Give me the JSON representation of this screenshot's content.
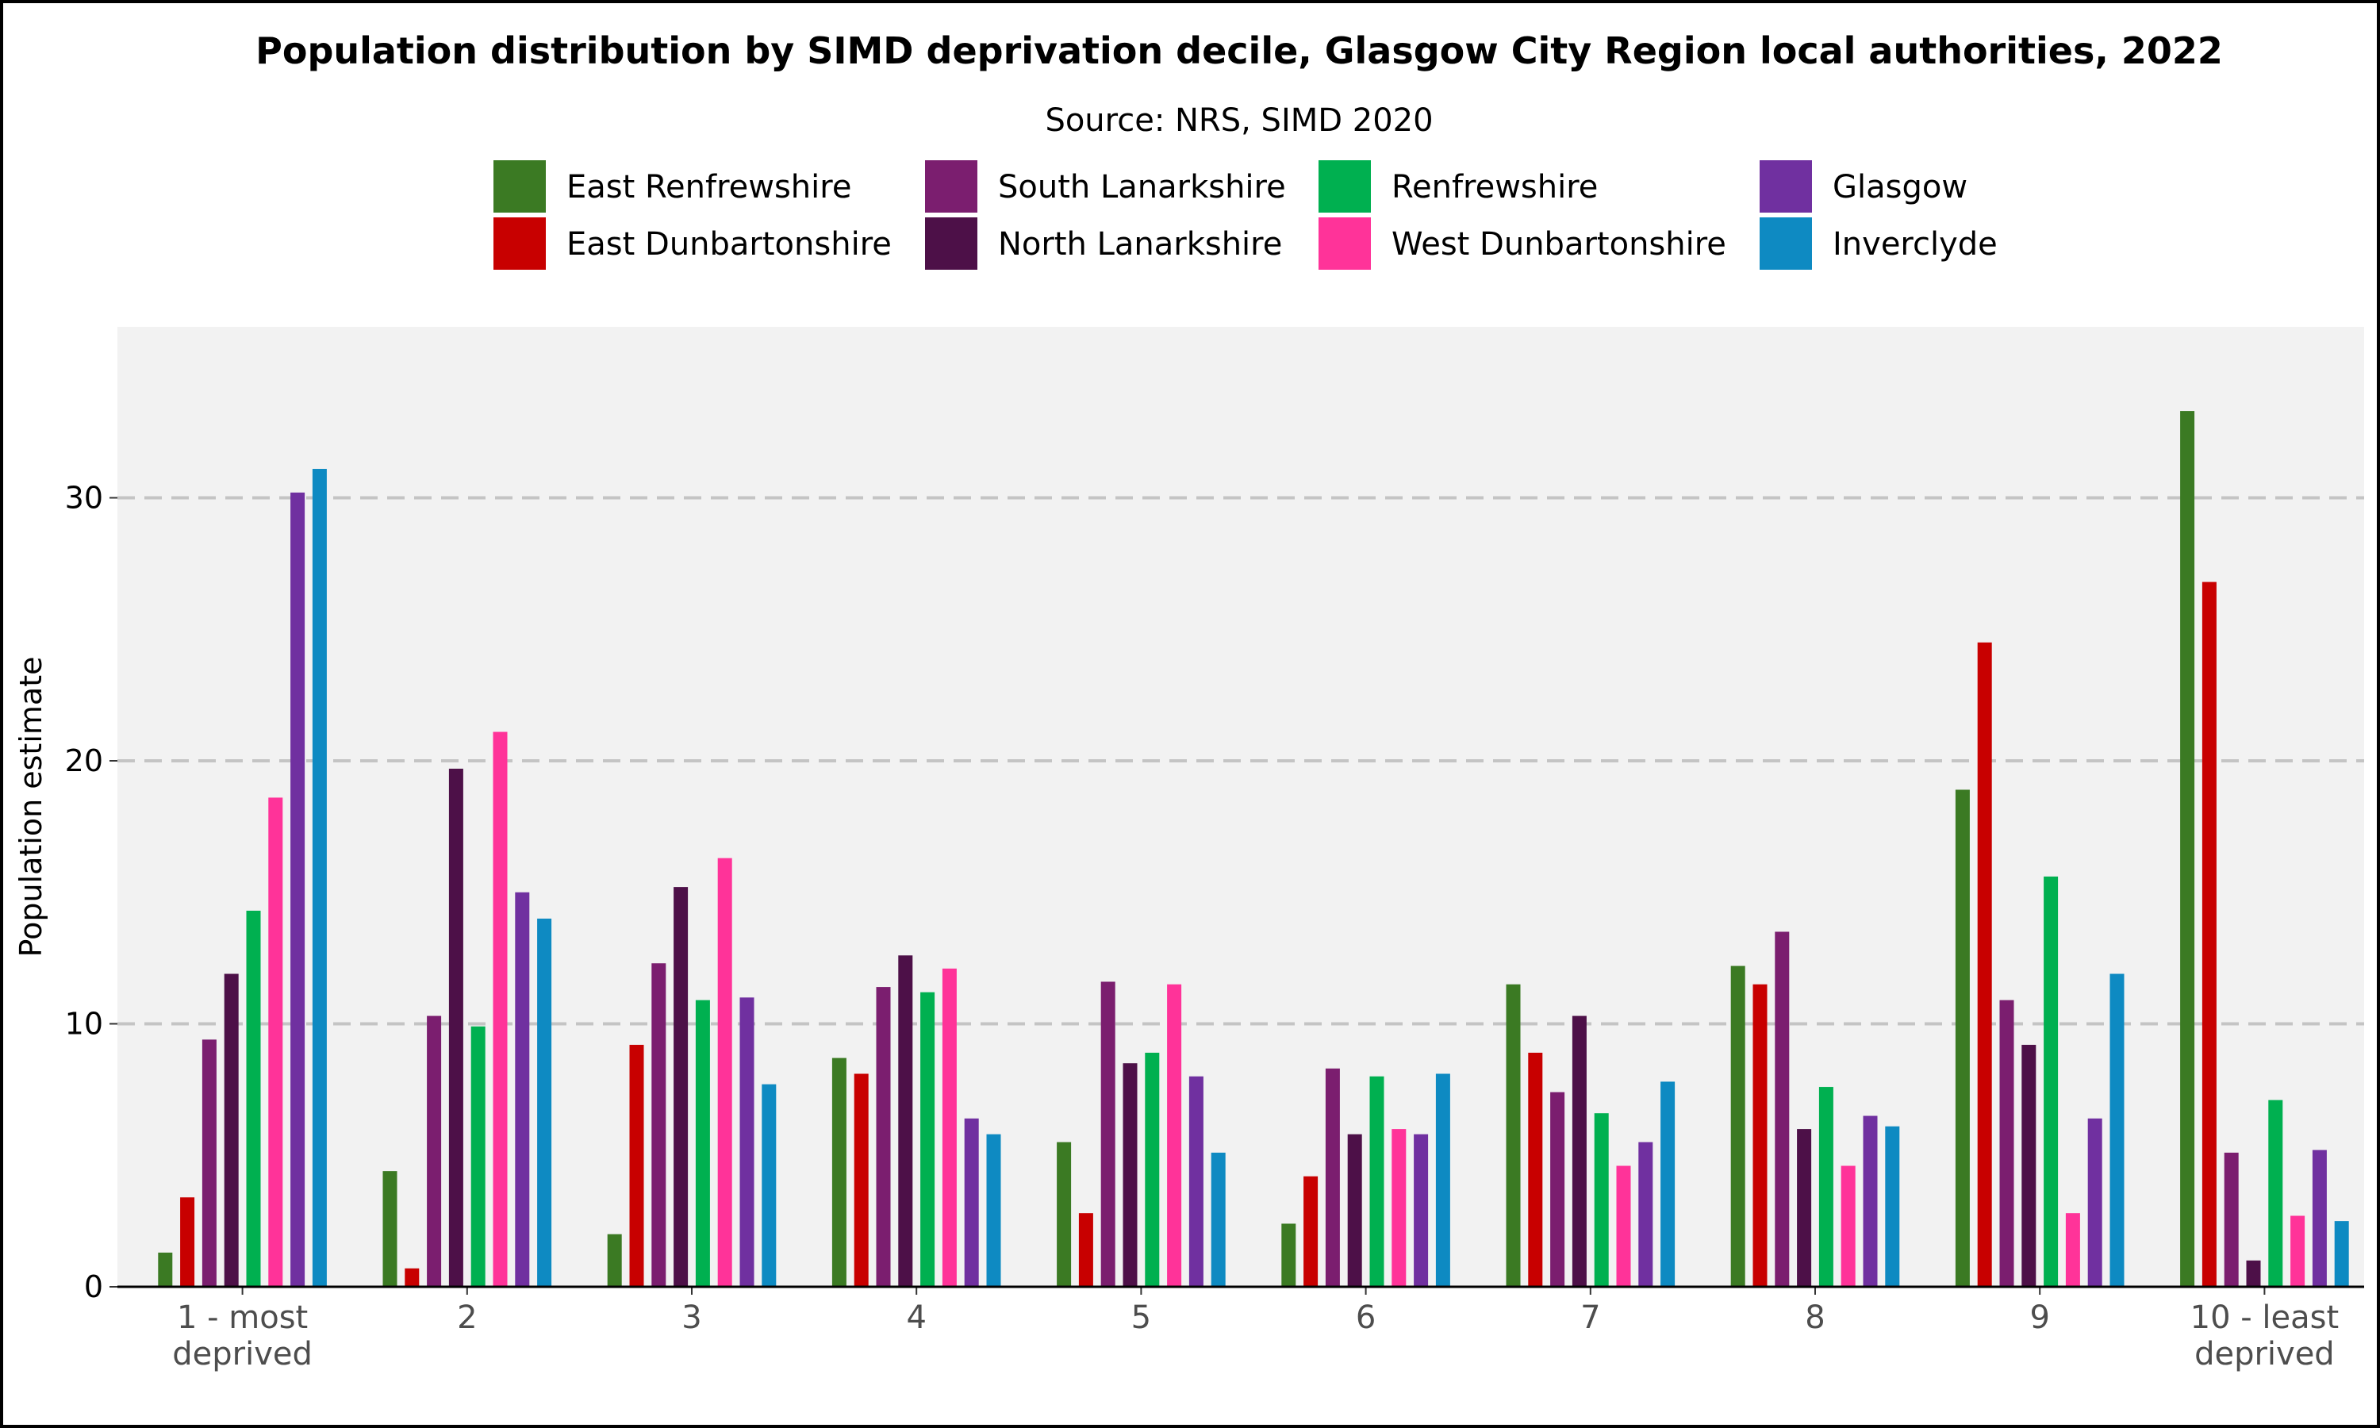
{
  "chart_data": {
    "type": "bar",
    "title": "Population distribution by SIMD deprivation decile, Glasgow City Region local authorities, 2022",
    "subtitle": "Source: NRS, SIMD 2020",
    "xlabel": "",
    "ylabel": "Population estimate",
    "ylim": [
      0,
      36.5
    ],
    "yticks": [
      0,
      10,
      20,
      30
    ],
    "grid": "horizontal dashed",
    "legend_position": "top",
    "categories": [
      [
        "1 - most",
        "deprived"
      ],
      [
        "2"
      ],
      [
        "3"
      ],
      [
        "4"
      ],
      [
        "5"
      ],
      [
        "6"
      ],
      [
        "7"
      ],
      [
        "8"
      ],
      [
        "9"
      ],
      [
        "10 - least",
        "deprived"
      ]
    ],
    "series": [
      {
        "name": "East Renfrewshire",
        "color": "#3b7a23",
        "values": [
          1.3,
          4.4,
          2.0,
          8.7,
          5.5,
          2.4,
          11.5,
          12.2,
          18.9,
          33.3
        ]
      },
      {
        "name": "East Dunbartonshire",
        "color": "#c80000",
        "values": [
          3.4,
          0.7,
          9.2,
          8.1,
          2.8,
          4.2,
          8.9,
          11.5,
          24.5,
          26.8
        ]
      },
      {
        "name": "South Lanarkshire",
        "color": "#7b1e6f",
        "values": [
          9.4,
          10.3,
          12.3,
          11.4,
          11.6,
          8.3,
          7.4,
          13.5,
          10.9,
          5.1
        ]
      },
      {
        "name": "North Lanarkshire",
        "color": "#4d1048",
        "values": [
          11.9,
          19.7,
          15.2,
          12.6,
          8.5,
          5.8,
          10.3,
          6.0,
          9.2,
          1.0
        ]
      },
      {
        "name": "Renfrewshire",
        "color": "#00b050",
        "values": [
          14.3,
          9.9,
          10.9,
          11.2,
          8.9,
          8.0,
          6.6,
          7.6,
          15.6,
          7.1
        ]
      },
      {
        "name": "West Dunbartonshire",
        "color": "#ff3399",
        "values": [
          18.6,
          21.1,
          16.3,
          12.1,
          11.5,
          6.0,
          4.6,
          4.6,
          2.8,
          2.7
        ]
      },
      {
        "name": "Glasgow",
        "color": "#7030a0",
        "values": [
          30.2,
          15.0,
          11.0,
          6.4,
          8.0,
          5.8,
          5.5,
          6.5,
          6.4,
          5.2
        ]
      },
      {
        "name": "Inverclyde",
        "color": "#0e8ac2",
        "values": [
          31.1,
          14.0,
          7.7,
          5.8,
          5.1,
          8.1,
          7.8,
          6.1,
          11.9,
          2.5
        ]
      }
    ]
  },
  "colors": {
    "panel_background": "#f2f2f2",
    "gridline": "#c4c4c4"
  }
}
